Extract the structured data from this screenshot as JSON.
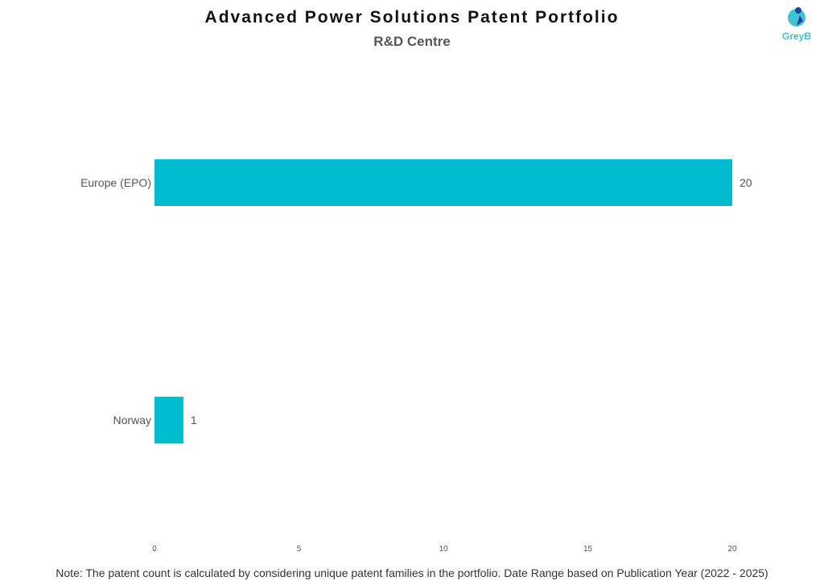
{
  "title": "Advanced Power Solutions Patent Portfolio",
  "subtitle": "R&D Centre",
  "logo_text": "GreyB",
  "note": "Note: The patent count is calculated by considering unique patent families in the portfolio. Date Range based on Publication Year (2022 - 2025)",
  "chart_data": {
    "type": "bar",
    "orientation": "horizontal",
    "categories": [
      "Europe (EPO)",
      "Norway"
    ],
    "values": [
      20,
      1
    ],
    "xlim": [
      0,
      20
    ],
    "xticks": [
      "0",
      "5",
      "10",
      "15",
      "20"
    ],
    "grid": false,
    "bar_color": "#00BCD0",
    "data_labels": true
  }
}
